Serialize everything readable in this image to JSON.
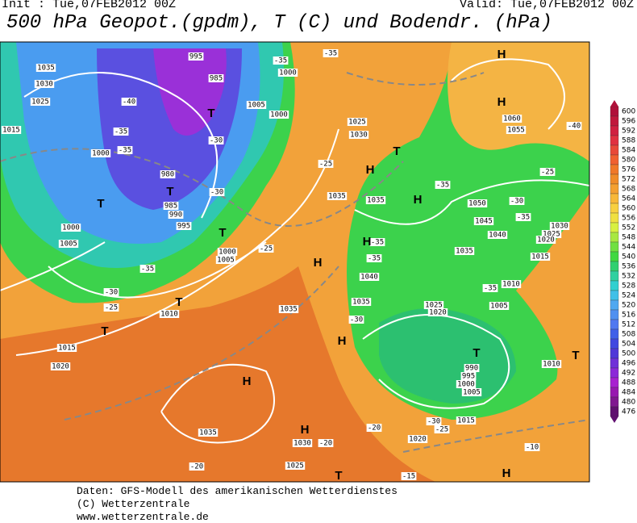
{
  "header": {
    "init": "Init : Tue,07FEB2012 00Z",
    "valid": "Valid: Tue,07FEB2012 00Z",
    "title": "500 hPa Geopot.(gpdm), T (C) und Bodendr. (hPa)"
  },
  "colorbar": {
    "ticks": [
      600,
      596,
      592,
      588,
      584,
      580,
      576,
      572,
      568,
      564,
      560,
      556,
      552,
      548,
      544,
      540,
      536,
      532,
      528,
      524,
      520,
      516,
      512,
      508,
      504,
      500,
      496,
      492,
      488,
      484,
      480,
      476
    ],
    "colors": [
      "#b0103a",
      "#c0183c",
      "#d02040",
      "#e03040",
      "#e84838",
      "#f06030",
      "#f07828",
      "#f08c28",
      "#f4a030",
      "#f8b838",
      "#f8d040",
      "#f0e040",
      "#d8f040",
      "#a8e840",
      "#70e040",
      "#40d840",
      "#30d070",
      "#30d0a0",
      "#30d0d0",
      "#40c0e8",
      "#50a8f0",
      "#5090f0",
      "#5078f0",
      "#4060e8",
      "#4048e0",
      "#5038d8",
      "#7030d8",
      "#8c28d8",
      "#a820d0",
      "#9818b0",
      "#801890",
      "#601070"
    ]
  },
  "map_labels": [
    "1035",
    "1030",
    "1025",
    "1015",
    "1000",
    "995",
    "985",
    "980",
    "985",
    "990",
    "995",
    "1005",
    "1000",
    "1000",
    "1000",
    "1005",
    "1005",
    "1000",
    "1010",
    "1015",
    "1020",
    "1035",
    "1035",
    "1035",
    "1025",
    "1030",
    "1050",
    "1045",
    "1040",
    "1035",
    "1030",
    "1025",
    "1020",
    "1015",
    "1010",
    "1040",
    "1035",
    "1025",
    "1020",
    "1005",
    "1060",
    "1055",
    "990",
    "995",
    "1000",
    "1005",
    "1015",
    "1020",
    "1010",
    "1035",
    "1030",
    "1025",
    "-40",
    "-35",
    "-35",
    "-30",
    "-30",
    "-35",
    "-30",
    "-25",
    "-25",
    "-25",
    "-35",
    "-35",
    "-35",
    "-30",
    "-35",
    "-30",
    "-35",
    "-40",
    "-25",
    "-20",
    "-25",
    "-30",
    "-20",
    "-15",
    "-10",
    "-20",
    "-35",
    "-35"
  ],
  "map_symbols": [
    "H",
    "H",
    "H",
    "H",
    "H",
    "H",
    "H",
    "H",
    "H",
    "H",
    "T",
    "T",
    "T",
    "T",
    "T",
    "T",
    "T",
    "T",
    "T",
    "T"
  ],
  "footer": [
    "Daten: GFS-Modell des amerikanischen Wetterdienstes",
    "(C) Wetterzentrale",
    "www.wetterzentrale.de"
  ]
}
